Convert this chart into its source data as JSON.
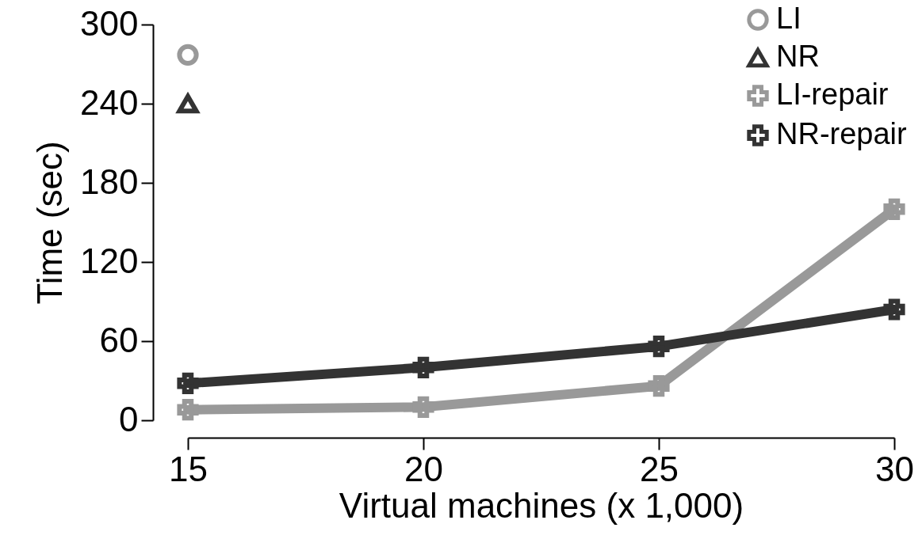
{
  "chart_data": {
    "type": "line",
    "xlabel": "Virtual machines (x 1,000)",
    "ylabel": "Time (sec)",
    "x": [
      15,
      20,
      25,
      30
    ],
    "xlim": [
      15,
      30
    ],
    "xticks": [
      15,
      20,
      25,
      30
    ],
    "ylim": [
      0,
      300
    ],
    "yticks": [
      0,
      60,
      120,
      180,
      240,
      300
    ],
    "grid": false,
    "legend": "top right",
    "line_style": "solid",
    "series": [
      {
        "name": "LI",
        "color": "#999999",
        "marker": "circle",
        "values": [
          277,
          null,
          null,
          null
        ]
      },
      {
        "name": "NR",
        "color": "#333333",
        "marker": "triangle",
        "values": [
          240,
          null,
          null,
          null
        ]
      },
      {
        "name": "LI-repair",
        "color": "#999999",
        "marker": "cross",
        "values": [
          8,
          10,
          26,
          160
        ]
      },
      {
        "name": "NR-repair",
        "color": "#333333",
        "marker": "cross",
        "values": [
          28,
          40,
          56,
          84
        ]
      }
    ]
  }
}
